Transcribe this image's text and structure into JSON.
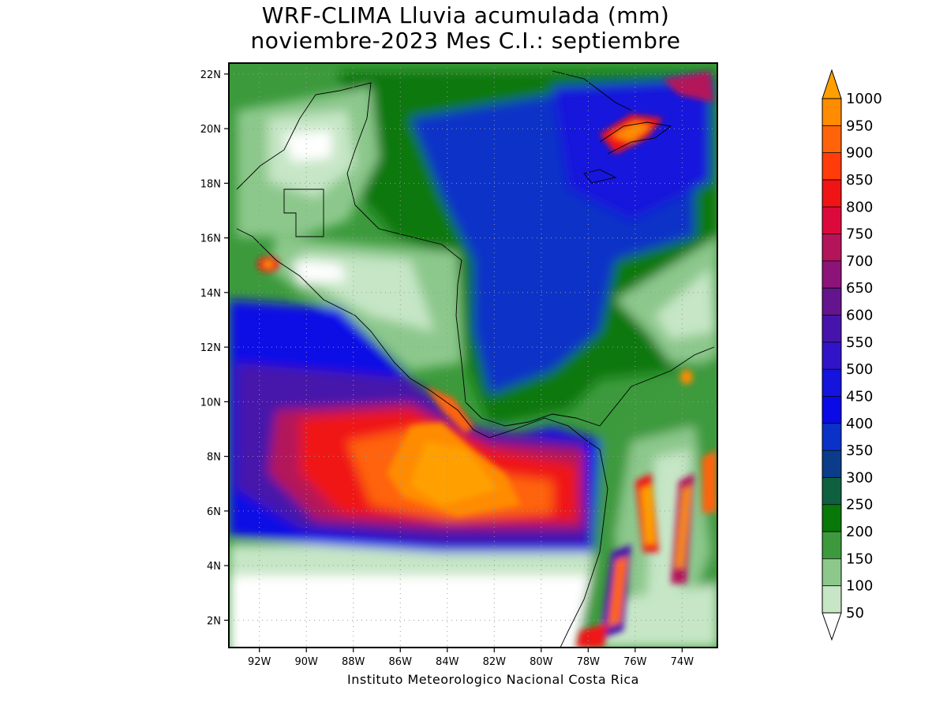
{
  "title_line1": "WRF-CLIMA Lluvia acumulada (mm)",
  "title_line2": "noviembre-2023 Mes C.I.: septiembre",
  "credit": "Instituto Meteorologico Nacional Costa Rica",
  "map": {
    "lat_labels": [
      "22N",
      "20N",
      "18N",
      "16N",
      "14N",
      "12N",
      "10N",
      "8N",
      "6N",
      "4N",
      "2N"
    ],
    "lat_values": [
      22,
      20,
      18,
      16,
      14,
      12,
      10,
      8,
      6,
      4,
      2
    ],
    "lon_labels": [
      "92W",
      "90W",
      "88W",
      "86W",
      "84W",
      "82W",
      "80W",
      "78W",
      "76W",
      "74W"
    ],
    "lon_values": [
      -92,
      -90,
      -88,
      -86,
      -84,
      -82,
      -80,
      -78,
      -76,
      -74
    ],
    "lat_range": [
      1,
      22.4
    ],
    "lon_range": [
      -93.3,
      -72.5
    ],
    "grid": "dotted"
  },
  "colorbar": {
    "labels": [
      "50",
      "100",
      "150",
      "200",
      "250",
      "300",
      "350",
      "400",
      "450",
      "500",
      "550",
      "600",
      "650",
      "700",
      "750",
      "800",
      "850",
      "900",
      "950",
      "1000"
    ],
    "colors": [
      "#ffffff",
      "#c6e6c6",
      "#8cc88c",
      "#3c9a3c",
      "#087808",
      "#0e6040",
      "#0a3c8a",
      "#0a32c8",
      "#0a0ae6",
      "#1414dc",
      "#3214c8",
      "#4614aa",
      "#64148c",
      "#8c1478",
      "#b4145a",
      "#dc0a3c",
      "#f01414",
      "#ff3c0a",
      "#ff640a",
      "#ff8c00",
      "#ffa000"
    ]
  }
}
